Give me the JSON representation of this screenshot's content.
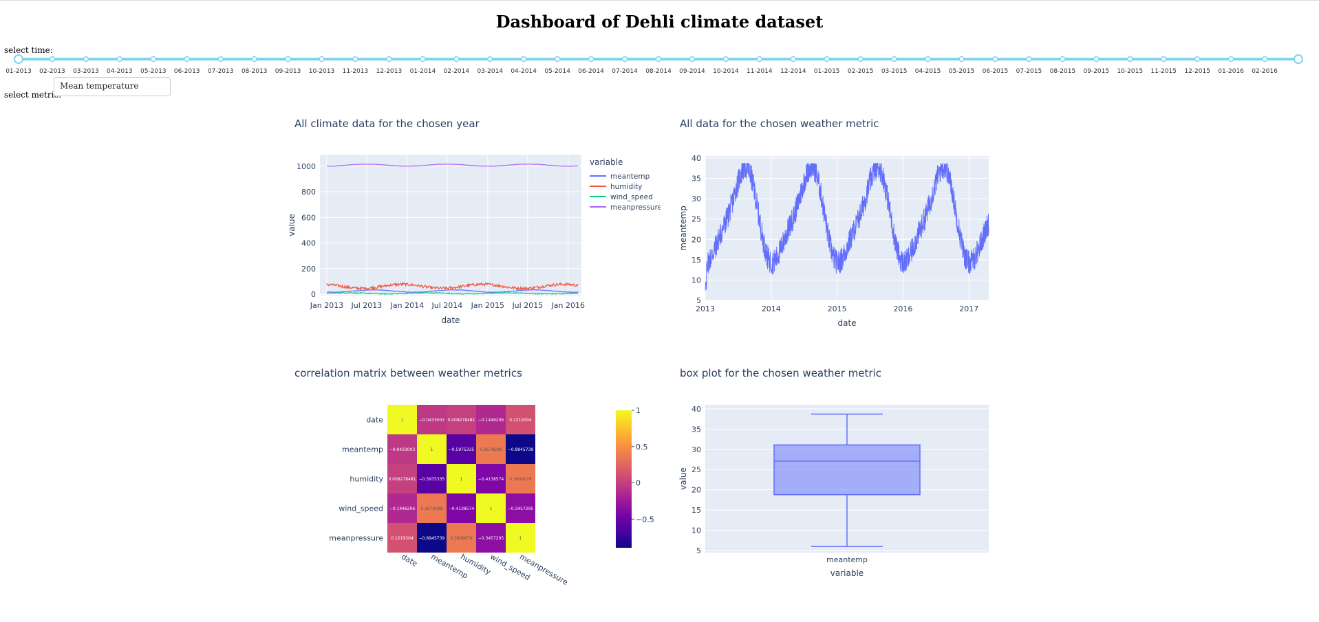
{
  "page": {
    "title": "Dashboard of Dehli climate dataset",
    "select_time_label": "select time:",
    "select_metric_label": "select metric:",
    "metric_dropdown_value": "Mean temperature"
  },
  "slider": {
    "marks": [
      "01-2013",
      "02-2013",
      "03-2013",
      "04-2013",
      "05-2013",
      "06-2013",
      "07-2013",
      "08-2013",
      "09-2013",
      "10-2013",
      "11-2013",
      "12-2013",
      "01-2014",
      "02-2014",
      "03-2014",
      "04-2014",
      "05-2014",
      "06-2014",
      "07-2014",
      "08-2014",
      "09-2014",
      "10-2014",
      "11-2014",
      "12-2014",
      "01-2015",
      "02-2015",
      "03-2015",
      "04-2015",
      "05-2015",
      "06-2015",
      "07-2015",
      "08-2015",
      "09-2015",
      "10-2015",
      "11-2015",
      "12-2015",
      "01-2016",
      "02-2016"
    ],
    "range_start_index": 0,
    "range_end_index": 38,
    "color": "#7fd3ed"
  },
  "chart_data": [
    {
      "type": "line",
      "title": "All climate data for the chosen year",
      "xlabel": "date",
      "ylabel": "value",
      "legend_title": "variable",
      "x_ticks": [
        "Jan 2013",
        "Jul 2013",
        "Jan 2014",
        "Jul 2014",
        "Jan 2015",
        "Jul 2015",
        "Jan 2016"
      ],
      "xlim": [
        "2012-12-01",
        "2016-03-01"
      ],
      "y_ticks": [
        0,
        200,
        400,
        600,
        800,
        1000
      ],
      "ylim": [
        -10,
        1090
      ],
      "series": [
        {
          "name": "meantemp",
          "color": "#636efa",
          "mean": 25,
          "amplitude": 9
        },
        {
          "name": "humidity",
          "color": "#ef553b",
          "mean": 62,
          "amplitude": 16
        },
        {
          "name": "wind_speed",
          "color": "#00cc96",
          "mean": 7,
          "amplitude": 4
        },
        {
          "name": "meanpressure",
          "color": "#ab63fa",
          "mean": 1008,
          "amplitude": 8
        }
      ]
    },
    {
      "type": "line",
      "title": "All data for the chosen weather metric",
      "xlabel": "date",
      "ylabel": "meantemp",
      "x_ticks": [
        "2013",
        "2014",
        "2015",
        "2016",
        "2017"
      ],
      "xlim": [
        2013.0,
        2017.3
      ],
      "y_ticks": [
        5,
        10,
        15,
        20,
        25,
        30,
        35,
        40
      ],
      "ylim": [
        5,
        40.5
      ],
      "series": [
        {
          "name": "meantemp",
          "color": "#636efa",
          "min": 6,
          "max": 38.7
        }
      ]
    },
    {
      "type": "heatmap",
      "title": "correlation matrix between weather metrics",
      "labels": [
        "date",
        "meantemp",
        "humidity",
        "wind_speed",
        "meanpressure"
      ],
      "values": [
        [
          1,
          -0.0433003,
          0.008278481,
          -0.1446206,
          0.1219304
        ],
        [
          -0.0433003,
          1,
          -0.5975335,
          0.3679288,
          -0.8945739
        ],
        [
          0.008278481,
          -0.5975335,
          1,
          -0.4138574,
          0.3669079
        ],
        [
          -0.1446206,
          0.3679288,
          -0.4138574,
          1,
          -0.3457295
        ],
        [
          0.1219304,
          -0.8945739,
          0.3669079,
          -0.3457295,
          1
        ]
      ],
      "value_labels": [
        [
          "1",
          "−0.0433003",
          "0.008278481",
          "−0.1446206",
          "0.1219304"
        ],
        [
          "−0.0433003",
          "1",
          "−0.5975335",
          "0.3679288",
          "−0.8945739"
        ],
        [
          "0.008278481",
          "−0.5975335",
          "1",
          "−0.4138574",
          "0.3669079"
        ],
        [
          "−0.1446206",
          "0.3679288",
          "−0.4138574",
          "1",
          "−0.3457295"
        ],
        [
          "0.1219304",
          "−0.8945739",
          "0.3669079",
          "−0.3457295",
          "1"
        ]
      ],
      "colorbar_ticks": [
        {
          "v": 1,
          "t": "1"
        },
        {
          "v": 0.5,
          "t": "0.5"
        },
        {
          "v": 0,
          "t": "0"
        },
        {
          "v": -0.5,
          "t": "−0.5"
        }
      ],
      "zlim": [
        -0.8945739,
        1
      ]
    },
    {
      "type": "box",
      "title": "box plot for the chosen weather metric",
      "xlabel": "variable",
      "ylabel": "value",
      "category": "meantemp",
      "y_ticks": [
        5,
        10,
        15,
        20,
        25,
        30,
        35,
        40
      ],
      "ylim": [
        4.5,
        41
      ],
      "stats": {
        "min": 6,
        "q1": 18.8,
        "median": 27.1,
        "q3": 31.1,
        "max": 38.7
      },
      "color": "#636efa"
    }
  ]
}
